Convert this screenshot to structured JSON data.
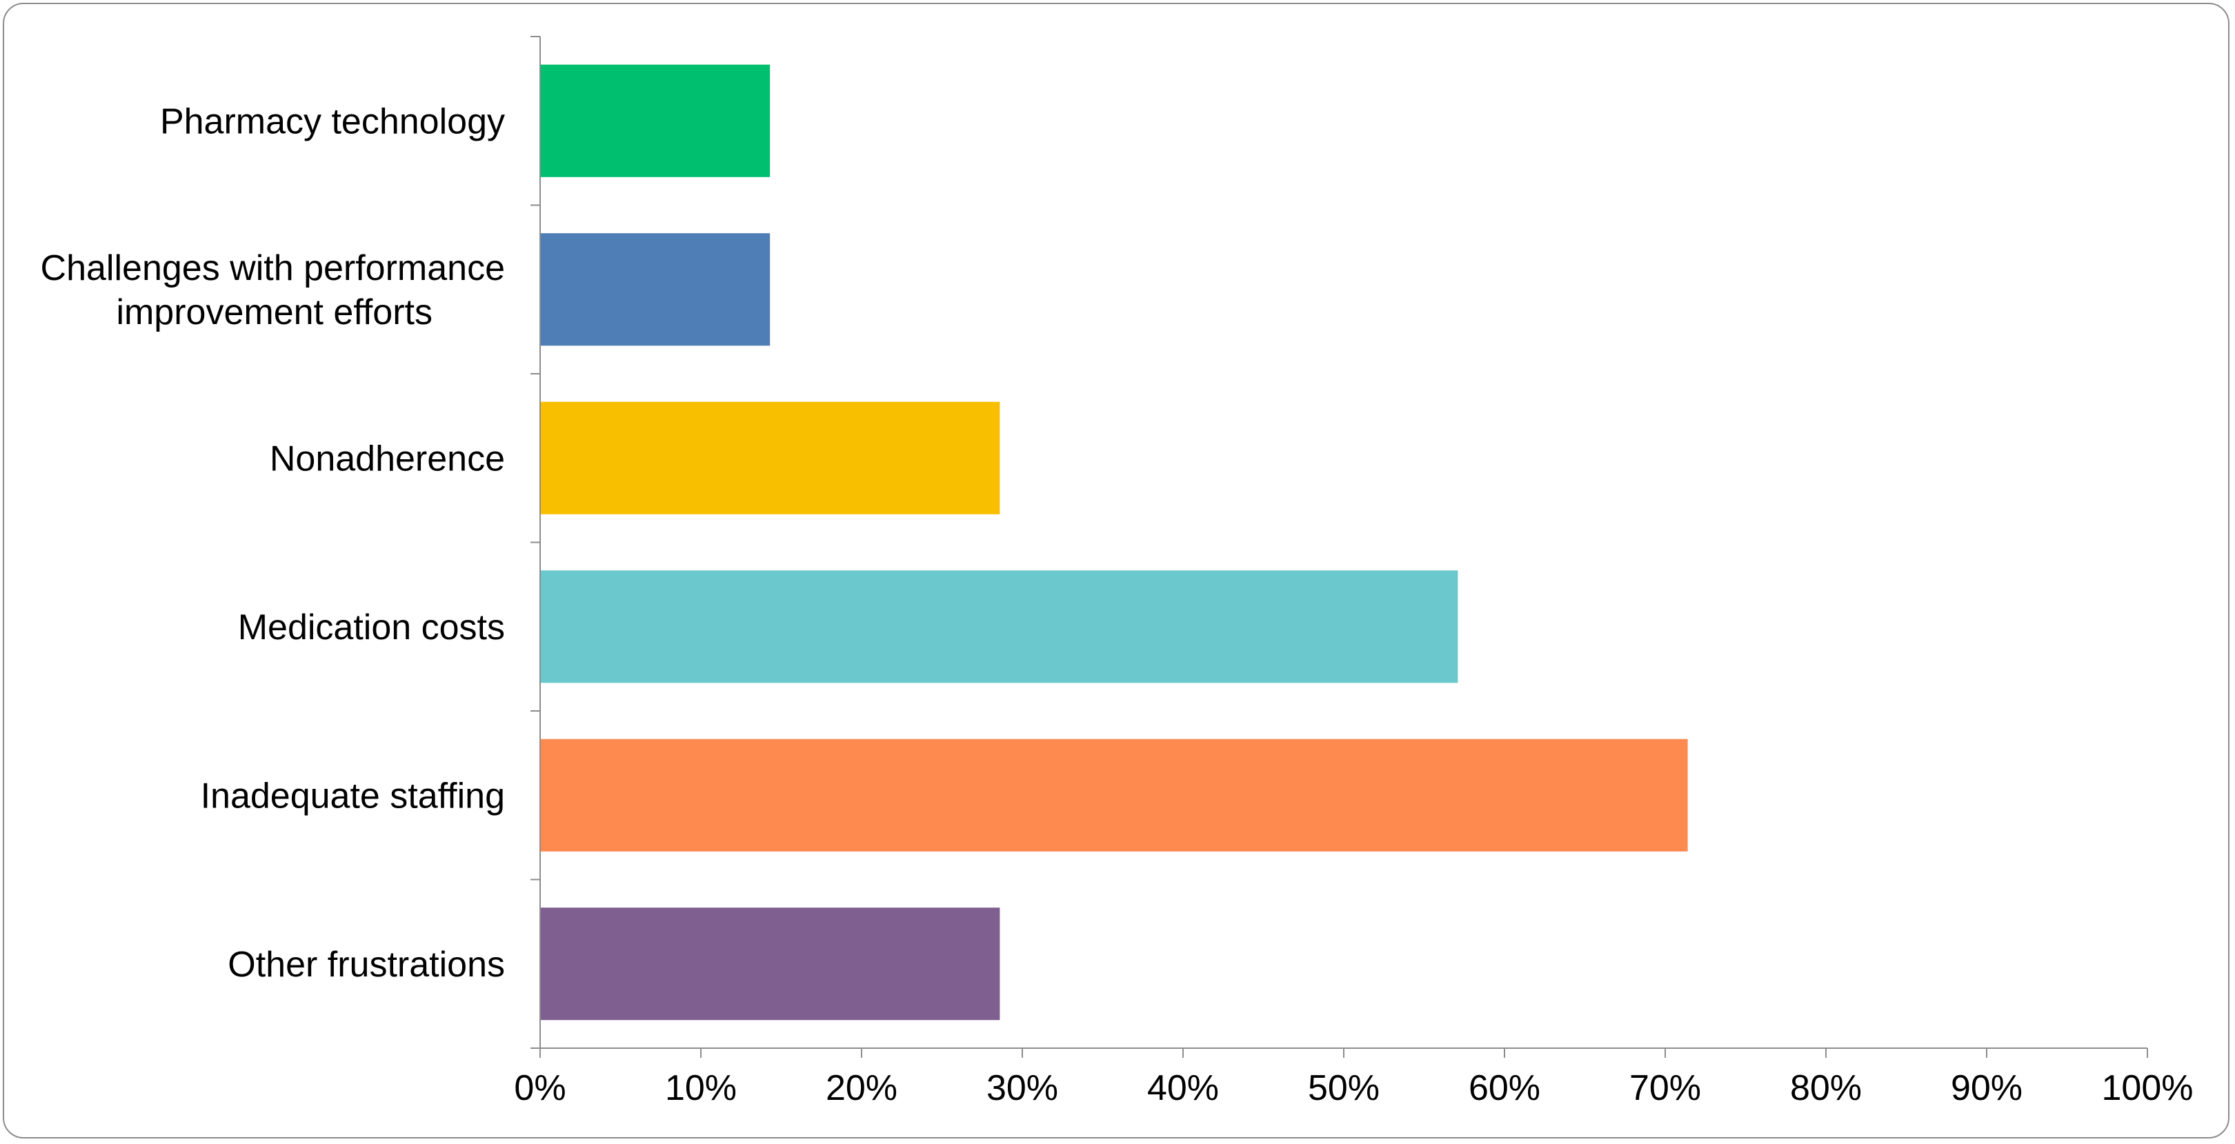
{
  "chart_data": {
    "type": "bar",
    "orientation": "horizontal",
    "categories": [
      "Pharmacy technology",
      "Challenges with performance improvement efforts",
      "Nonadherence",
      "Medication costs",
      "Inadequate staffing",
      "Other frustrations"
    ],
    "category_lines": [
      [
        "Pharmacy technology"
      ],
      [
        "Challenges with performance",
        "improvement efforts"
      ],
      [
        "Nonadherence"
      ],
      [
        "Medication costs"
      ],
      [
        "Inadequate staffing"
      ],
      [
        "Other frustrations"
      ]
    ],
    "values": [
      14.3,
      14.3,
      28.6,
      57.1,
      71.4,
      28.6
    ],
    "colors": [
      "#00bf6f",
      "#4f7db5",
      "#f8bf00",
      "#6bc8cc",
      "#ff8a50",
      "#7e5f8f"
    ],
    "xlim": [
      0,
      100
    ],
    "xticks": [
      0,
      10,
      20,
      30,
      40,
      50,
      60,
      70,
      80,
      90,
      100
    ],
    "xtick_labels": [
      "0%",
      "10%",
      "20%",
      "30%",
      "40%",
      "50%",
      "60%",
      "70%",
      "80%",
      "90%",
      "100%"
    ],
    "title": "",
    "xlabel": "",
    "ylabel": "",
    "grid": false,
    "legend": "none"
  }
}
